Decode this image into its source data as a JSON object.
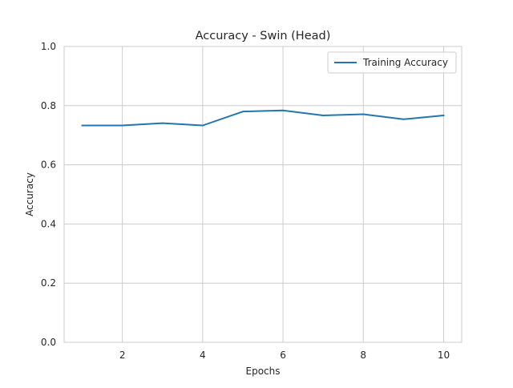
{
  "chart_data": {
    "type": "line",
    "title": "Accuracy - Swin (Head)",
    "xlabel": "Epochs",
    "ylabel": "Accuracy",
    "xlim": [
      0.55,
      10.45
    ],
    "ylim": [
      0.0,
      1.0
    ],
    "xticks": [
      2,
      4,
      6,
      8,
      10
    ],
    "yticks": [
      0.0,
      0.2,
      0.4,
      0.6,
      0.8,
      1.0
    ],
    "ytick_labels": [
      "0.0",
      "0.2",
      "0.4",
      "0.6",
      "0.8",
      "1.0"
    ],
    "grid": true,
    "legend_position": "top-right",
    "x": [
      1,
      2,
      3,
      4,
      5,
      6,
      7,
      8,
      9,
      10
    ],
    "series": [
      {
        "name": "Training Accuracy",
        "color": "#1f77b4",
        "values": [
          0.733,
          0.733,
          0.741,
          0.733,
          0.78,
          0.784,
          0.767,
          0.771,
          0.754,
          0.767
        ]
      }
    ]
  }
}
